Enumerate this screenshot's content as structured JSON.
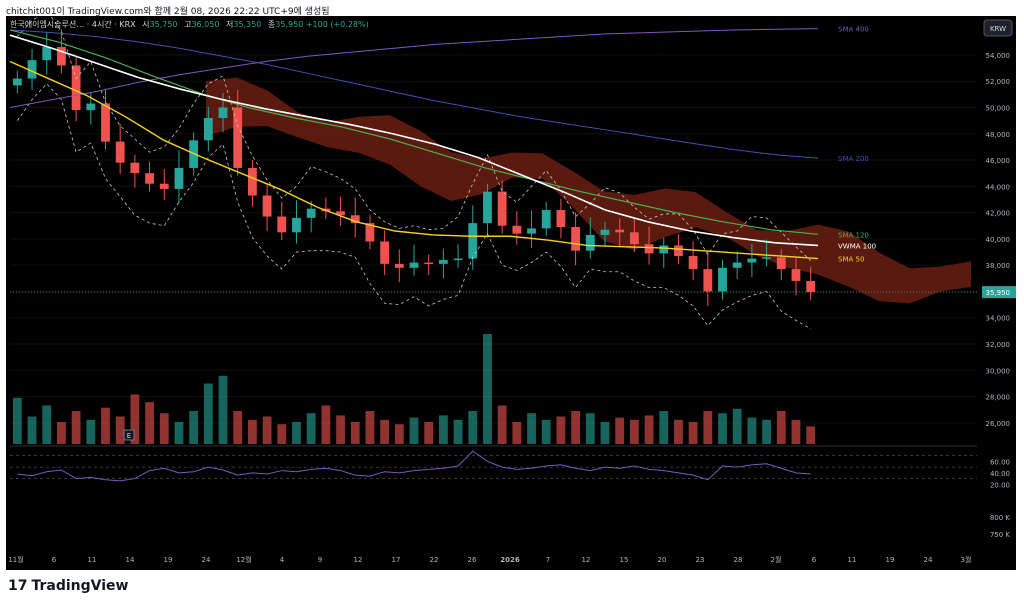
{
  "header": {
    "publish_line": "chitchit001이 TradingView.com와 함께 2월 08, 2026 22:22 UTC+9에 생성됨"
  },
  "legend": {
    "symbol": "한국에이엠시솔루션…",
    "interval_exchange": "· 4시간 · KRX",
    "open_label": "시",
    "open": "35,750",
    "high_label": "고",
    "high": "36,050",
    "low_label": "저",
    "low": "35,350",
    "close_label": "종",
    "close": "35,950",
    "change": "+100 (+0.28%)"
  },
  "currency": "KRW",
  "footer": {
    "brand": "TradingView",
    "mark": "17"
  },
  "colors": {
    "up": "#26a69a",
    "down": "#ef5350",
    "cloud": "#6b1e12",
    "sma400": "#7e57c2",
    "sma200": "#3f51b5",
    "sma120": "#4caf50",
    "vwma100": "#ffffff",
    "sma50": "#f5d020",
    "bands": "#c8c8c8",
    "rsi": "#7e57c2"
  },
  "chart_data": {
    "type": "line",
    "title": "",
    "y_ticks": [
      "54,000",
      "52,000",
      "50,000",
      "48,000",
      "46,000",
      "44,000",
      "42,000",
      "40,000",
      "38,000",
      "36,000",
      "34,000",
      "32,000",
      "30,000",
      "28,000",
      "26,000"
    ],
    "y_range": [
      25000,
      56200
    ],
    "x_labels": [
      "11월",
      "6",
      "11",
      "14",
      "19",
      "24",
      "12월",
      "4",
      "9",
      "12",
      "17",
      "22",
      "26",
      "2026",
      "7",
      "12",
      "15",
      "20",
      "23",
      "28",
      "2월",
      "6",
      "11",
      "19",
      "24",
      "3월"
    ],
    "price": {
      "close": [
        52200,
        53600,
        54600,
        53200,
        49800,
        50300,
        47400,
        45800,
        45000,
        44200,
        43800,
        45400,
        47500,
        49200,
        50000,
        45400,
        43300,
        41700,
        40500,
        41600,
        42300,
        42100,
        41800,
        41200,
        39800,
        38100,
        37800,
        38200,
        38100,
        38400,
        38500,
        41200,
        43600,
        41000,
        40400,
        40800,
        42200,
        40900,
        39100,
        40300,
        40700,
        40500,
        39600,
        38900,
        39500,
        38700,
        37700,
        36000,
        37800,
        38200,
        38500,
        38600,
        37700,
        36800,
        35950
      ],
      "current": 35950,
      "current_label": "35,950"
    },
    "overlays": [
      {
        "name": "SMA 400",
        "values": [
          50000,
          50600,
          51200,
          51900,
          52500,
          53000,
          53500,
          53900,
          54200,
          54500,
          54800,
          55000,
          55200,
          55400,
          55600,
          55700,
          55800,
          55900,
          55950,
          56000
        ]
      },
      {
        "name": "SMA 200",
        "values": [
          55900,
          55700,
          55400,
          55000,
          54500,
          53900,
          53300,
          52600,
          51900,
          51200,
          50500,
          49900,
          49300,
          48800,
          48300,
          47800,
          47300,
          46800,
          46400,
          46150
        ]
      },
      {
        "name": "SMA 120",
        "values": [
          55900,
          55000,
          53800,
          52400,
          51100,
          50000,
          49200,
          48500,
          47600,
          46500,
          45400,
          44500,
          43600,
          42800,
          42000,
          41300,
          40700,
          40350
        ]
      },
      {
        "name": "VWMA 100",
        "values": [
          55500,
          54500,
          53400,
          52300,
          51400,
          50600,
          49900,
          49300,
          48700,
          48000,
          47200,
          46200,
          44900,
          43600,
          42200,
          41300,
          40600,
          40100,
          39700,
          39500
        ]
      },
      {
        "name": "SMA 50",
        "values": [
          53500,
          52200,
          50900,
          49300,
          47500,
          46200,
          45000,
          43800,
          42400,
          41300,
          40600,
          40300,
          40200,
          40200,
          39900,
          39500,
          39400,
          39300,
          39100,
          38900,
          38700,
          38500
        ]
      }
    ],
    "legend_labels": [
      "SMA 400",
      "SMA 200",
      "SMA 120",
      "VWMA 100",
      "SMA 50"
    ],
    "volume": [
      0.42,
      0.25,
      0.35,
      0.2,
      0.3,
      0.22,
      0.33,
      0.25,
      0.45,
      0.38,
      0.28,
      0.2,
      0.3,
      0.55,
      0.62,
      0.3,
      0.22,
      0.25,
      0.18,
      0.2,
      0.28,
      0.35,
      0.26,
      0.2,
      0.3,
      0.22,
      0.18,
      0.24,
      0.2,
      0.26,
      0.22,
      0.3,
      1.0,
      0.35,
      0.2,
      0.28,
      0.22,
      0.25,
      0.3,
      0.28,
      0.2,
      0.24,
      0.22,
      0.26,
      0.3,
      0.22,
      0.2,
      0.3,
      0.28,
      0.32,
      0.24,
      0.22,
      0.3,
      0.22,
      0.16
    ],
    "rsi": {
      "ticks": [
        "60.00",
        "40.00",
        "20.00"
      ],
      "range": [
        10,
        80
      ],
      "values": [
        38,
        35,
        42,
        45,
        30,
        32,
        28,
        26,
        30,
        44,
        48,
        40,
        42,
        50,
        45,
        36,
        40,
        38,
        44,
        42,
        46,
        48,
        44,
        36,
        34,
        42,
        40,
        44,
        46,
        48,
        52,
        78,
        60,
        50,
        46,
        48,
        52,
        54,
        48,
        44,
        50,
        48,
        52,
        46,
        44,
        40,
        36,
        28,
        52,
        50,
        54,
        56,
        48,
        40,
        38
      ]
    },
    "volume_ticks": [
      "800 K",
      "750 K"
    ]
  }
}
